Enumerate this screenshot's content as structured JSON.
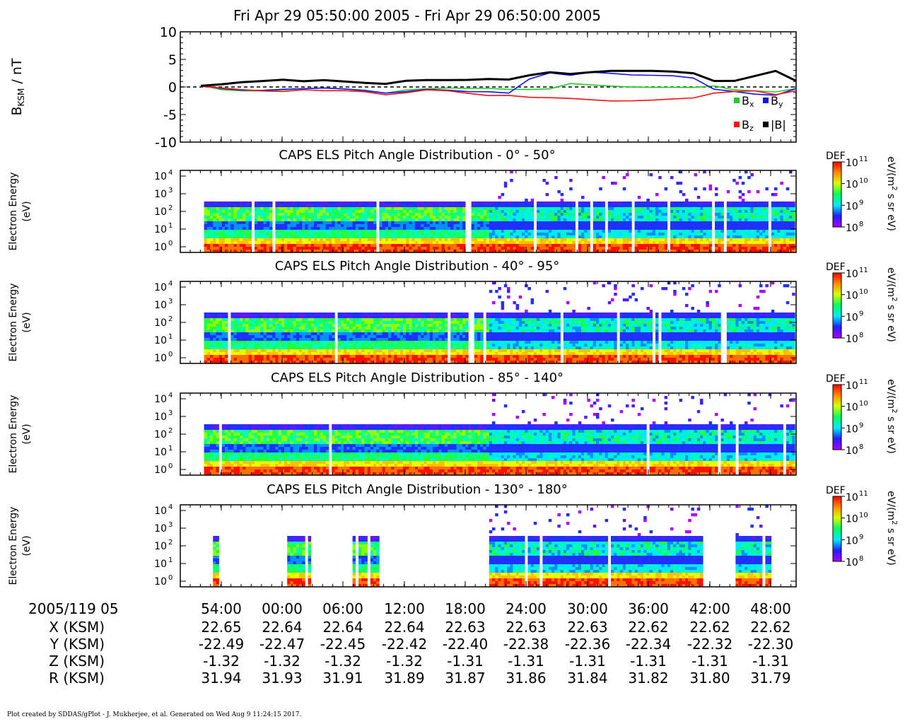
{
  "header": {
    "title": "Fri Apr 29 05:50:00 2005 - Fri Apr 29 06:50:00 2005"
  },
  "footer": {
    "credit": "Plot created by SDDAS/gPlot - J. Mukherjee, et al.  Generated on Wed Aug 9 11:24:15 2017."
  },
  "colors": {
    "bx": "#22cc22",
    "by": "#1010ff",
    "bz": "#ff1010",
    "btot": "#000000"
  },
  "chart_data": [
    {
      "type": "line",
      "ylabel_main": "B",
      "ylabel_sub": "KSM",
      "ylabel_unit": " / nT",
      "ylim": [
        -10,
        10
      ],
      "yticks": [
        "10",
        "5",
        "0",
        "-5",
        "-10"
      ],
      "xlim": [
        50,
        110
      ],
      "legend": {
        "bx": "B",
        "bx_sub": "x",
        "by": "B",
        "by_sub": "y",
        "bz": "B",
        "bz_sub": "z",
        "btot": "|B|"
      },
      "x": [
        52,
        54,
        56,
        58,
        60,
        62,
        64,
        66,
        68,
        70,
        72,
        74,
        76,
        78,
        80,
        82,
        84,
        86,
        88,
        90,
        92,
        94,
        96,
        98,
        100,
        102,
        104,
        106,
        108,
        110
      ],
      "series": [
        {
          "key": "bx",
          "values": [
            0.2,
            -0.5,
            -0.6,
            -0.6,
            -0.5,
            -0.4,
            -0.3,
            -0.4,
            -0.5,
            -1.0,
            -0.5,
            -0.4,
            -0.3,
            -0.3,
            -0.2,
            -0.3,
            -0.4,
            -0.4,
            0.5,
            0.3,
            0.2,
            0.1,
            0.0,
            -0.1,
            -0.2,
            0.1,
            -0.5,
            -0.6,
            -0.8,
            -0.3
          ]
        },
        {
          "key": "by",
          "values": [
            0.2,
            -0.3,
            -0.5,
            -0.5,
            -0.4,
            -0.4,
            -0.3,
            -0.4,
            -0.6,
            -1.0,
            -0.8,
            -0.5,
            -0.7,
            -0.9,
            -0.8,
            -1.0,
            1.5,
            2.5,
            2.0,
            2.6,
            2.5,
            2.3,
            2.2,
            2.0,
            1.5,
            -0.5,
            -0.8,
            -1.2,
            -1.4,
            -0.3
          ]
        },
        {
          "key": "bz",
          "values": [
            0.0,
            -0.2,
            -0.4,
            -0.6,
            -0.8,
            -0.6,
            -0.8,
            -0.7,
            -0.8,
            -1.3,
            -1.0,
            -0.6,
            -0.8,
            -1.2,
            -1.5,
            -1.4,
            -1.8,
            -2.0,
            -2.2,
            -2.4,
            -2.5,
            -2.4,
            -2.3,
            -2.2,
            -2.1,
            -1.2,
            -0.8,
            -0.6,
            -1.3,
            -0.7
          ]
        },
        {
          "key": "btot",
          "values": [
            0.3,
            0.6,
            0.9,
            1.0,
            1.2,
            1.0,
            1.3,
            1.1,
            0.8,
            0.5,
            1.0,
            1.2,
            1.3,
            1.4,
            1.5,
            1.3,
            2.0,
            2.6,
            2.4,
            2.8,
            3.0,
            2.9,
            2.8,
            2.7,
            2.5,
            1.2,
            1.2,
            2.0,
            2.8,
            1.0
          ]
        }
      ]
    },
    {
      "type": "heatmap",
      "title": "CAPS ELS Pitch Angle Distribution - 0° - 50°",
      "ylabel": "Electron Energy",
      "yunit": "(eV)",
      "yticks": [
        "10",
        "10",
        "10",
        "10",
        "10"
      ],
      "yticks_exp": [
        "4",
        "3",
        "2",
        "1",
        "0"
      ],
      "cbar_label": "DEF",
      "cbar_unit": "eV/(m",
      "cbar_unit_exp": "2",
      "cbar_unit_rest": " s sr eV)",
      "cbar_ticks": [
        "10",
        "10",
        "10",
        "10"
      ],
      "cbar_ticks_exp": [
        "11",
        "10",
        "9",
        "8"
      ]
    },
    {
      "type": "heatmap",
      "title": "CAPS ELS Pitch Angle Distribution - 40° - 95°",
      "ylabel": "Electron Energy",
      "yunit": "(eV)",
      "yticks": [
        "10",
        "10",
        "10",
        "10",
        "10"
      ],
      "yticks_exp": [
        "4",
        "3",
        "2",
        "1",
        "0"
      ],
      "cbar_label": "DEF",
      "cbar_unit": "eV/(m",
      "cbar_unit_exp": "2",
      "cbar_unit_rest": " s sr eV)",
      "cbar_ticks": [
        "10",
        "10",
        "10",
        "10"
      ],
      "cbar_ticks_exp": [
        "11",
        "10",
        "9",
        "8"
      ]
    },
    {
      "type": "heatmap",
      "title": "CAPS ELS Pitch Angle Distribution - 85° - 140°",
      "ylabel": "Electron Energy",
      "yunit": "(eV)",
      "yticks": [
        "10",
        "10",
        "10",
        "10",
        "10"
      ],
      "yticks_exp": [
        "4",
        "3",
        "2",
        "1",
        "0"
      ],
      "cbar_label": "DEF",
      "cbar_unit": "eV/(m",
      "cbar_unit_exp": "2",
      "cbar_unit_rest": " s sr eV)",
      "cbar_ticks": [
        "10",
        "10",
        "10",
        "10"
      ],
      "cbar_ticks_exp": [
        "11",
        "10",
        "9",
        "8"
      ]
    },
    {
      "type": "heatmap",
      "title": "CAPS ELS Pitch Angle Distribution - 130° - 180°",
      "ylabel": "Electron Energy",
      "yunit": "(eV)",
      "yticks": [
        "10",
        "10",
        "10",
        "10",
        "10"
      ],
      "yticks_exp": [
        "4",
        "3",
        "2",
        "1",
        "0"
      ],
      "cbar_label": "DEF",
      "cbar_unit": "eV/(m",
      "cbar_unit_exp": "2",
      "cbar_unit_rest": " s sr eV)",
      "cbar_ticks": [
        "10",
        "10",
        "10",
        "10"
      ],
      "cbar_ticks_exp": [
        "11",
        "10",
        "9",
        "8"
      ]
    }
  ],
  "ephemeris": {
    "date_label": "2005/119 05",
    "row_labels": [
      "X (KSM)",
      "Y (KSM)",
      "Z (KSM)",
      "R (KSM)"
    ],
    "times": [
      "54:00",
      "00:00",
      "06:00",
      "12:00",
      "18:00",
      "24:00",
      "30:00",
      "36:00",
      "42:00",
      "48:00"
    ],
    "x": [
      "22.65",
      "22.64",
      "22.64",
      "22.64",
      "22.63",
      "22.63",
      "22.63",
      "22.62",
      "22.62",
      "22.62"
    ],
    "y": [
      "-22.49",
      "-22.47",
      "-22.45",
      "-22.42",
      "-22.40",
      "-22.38",
      "-22.36",
      "-22.34",
      "-22.32",
      "-22.30"
    ],
    "z": [
      "-1.32",
      "-1.32",
      "-1.32",
      "-1.32",
      "-1.31",
      "-1.31",
      "-1.31",
      "-1.31",
      "-1.31",
      "-1.31"
    ],
    "r": [
      "31.94",
      "31.93",
      "31.91",
      "31.89",
      "31.87",
      "31.86",
      "31.84",
      "31.82",
      "31.80",
      "31.79"
    ]
  }
}
